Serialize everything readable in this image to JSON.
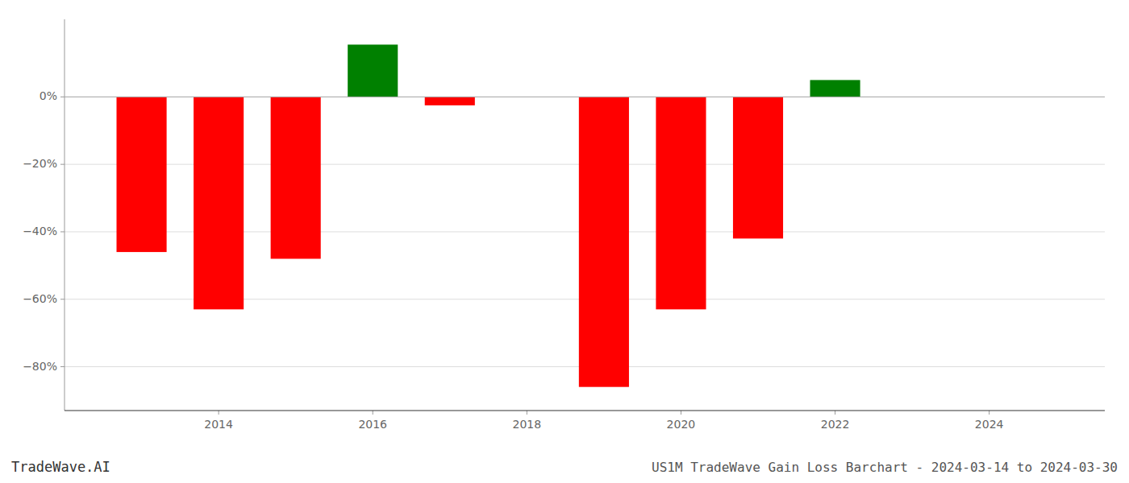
{
  "chart_data": {
    "type": "bar",
    "x": [
      2013,
      2014,
      2015,
      2016,
      2017,
      2019,
      2020,
      2021,
      2022
    ],
    "values": [
      -0.46,
      -0.63,
      -0.48,
      0.155,
      -0.025,
      -0.86,
      -0.63,
      -0.42,
      0.05
    ],
    "colors": [
      "#ff0000",
      "#ff0000",
      "#ff0000",
      "#008000",
      "#ff0000",
      "#ff0000",
      "#ff0000",
      "#ff0000",
      "#008000"
    ],
    "xlim": [
      2012.0,
      2025.5
    ],
    "xticks": [
      2014,
      2016,
      2018,
      2020,
      2022,
      2024
    ],
    "ylim": [
      -0.93,
      0.23
    ],
    "yticks": [
      {
        "value": 0.0,
        "label": "0%"
      },
      {
        "value": -0.2,
        "label": "−20%"
      },
      {
        "value": -0.4,
        "label": "−40%"
      },
      {
        "value": -0.6,
        "label": "−60%"
      },
      {
        "value": -0.8,
        "label": "−80%"
      }
    ],
    "grid": true,
    "annotations": [
      "TradeWave.AI",
      "US1M TradeWave Gain Loss Barchart - 2024-03-14 to 2024-03-30"
    ]
  }
}
